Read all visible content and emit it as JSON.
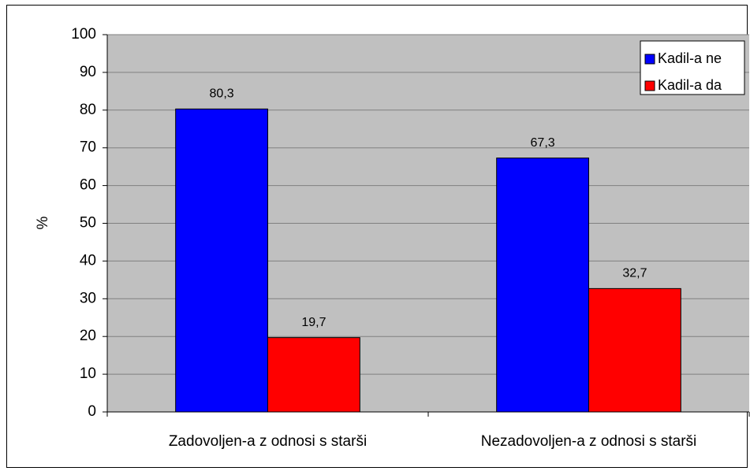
{
  "chart_data": {
    "type": "bar",
    "categories": [
      "Zadovoljen-a z odnosi s starši",
      "Nezadovoljen-a z odnosi s starši"
    ],
    "series": [
      {
        "name": "Kadil-a ne",
        "color": "#0000ff",
        "values": [
          80.3,
          67.3
        ],
        "value_labels": [
          "80,3",
          "67,3"
        ]
      },
      {
        "name": "Kadil-a da",
        "color": "#ff0000",
        "values": [
          19.7,
          32.7
        ],
        "value_labels": [
          "19,7",
          "32,7"
        ]
      }
    ],
    "ylabel": "%",
    "ylim": [
      0,
      100
    ],
    "yticks": [
      0,
      10,
      20,
      30,
      40,
      50,
      60,
      70,
      80,
      90,
      100
    ],
    "grid": true,
    "legend": "top-right",
    "plot_background": "#c0c0c0"
  }
}
